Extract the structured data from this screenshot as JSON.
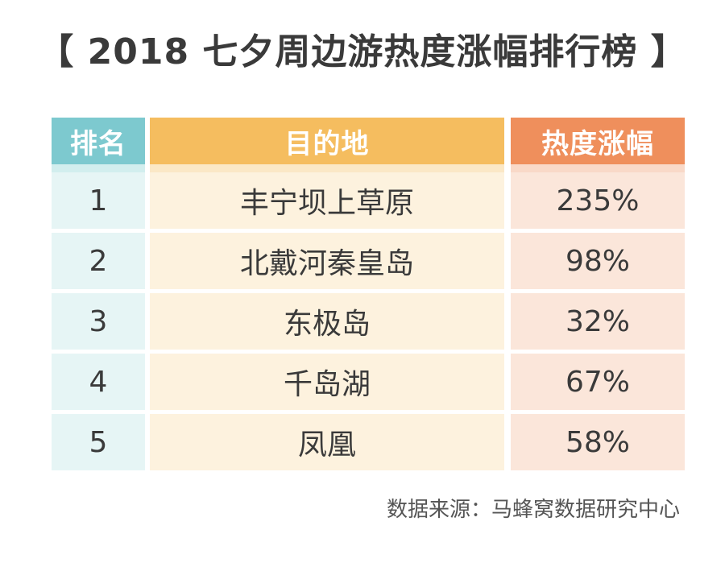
{
  "title": "【 2018 七夕周边游热度涨幅排行榜 】",
  "source": "数据来源：马蜂窝数据研究中心",
  "colors": {
    "rank_header": "#7dc9cf",
    "destination_header": "#f5bd5f",
    "rise_header": "#ef8f5c",
    "rank_cell": "#e6f5f5",
    "destination_cell": "#fdf2de",
    "rise_cell": "#fbe6da"
  },
  "chart_data": {
    "type": "table",
    "title": "【 2018 七夕周边游热度涨幅排行榜 】",
    "columns": [
      "排名",
      "目的地",
      "热度涨幅"
    ],
    "rows": [
      [
        "1",
        "丰宁坝上草原",
        "235%"
      ],
      [
        "2",
        "北戴河秦皇岛",
        "98%"
      ],
      [
        "3",
        "东极岛",
        "32%"
      ],
      [
        "4",
        "千岛湖",
        "67%"
      ],
      [
        "5",
        "凤凰",
        "58%"
      ]
    ]
  }
}
